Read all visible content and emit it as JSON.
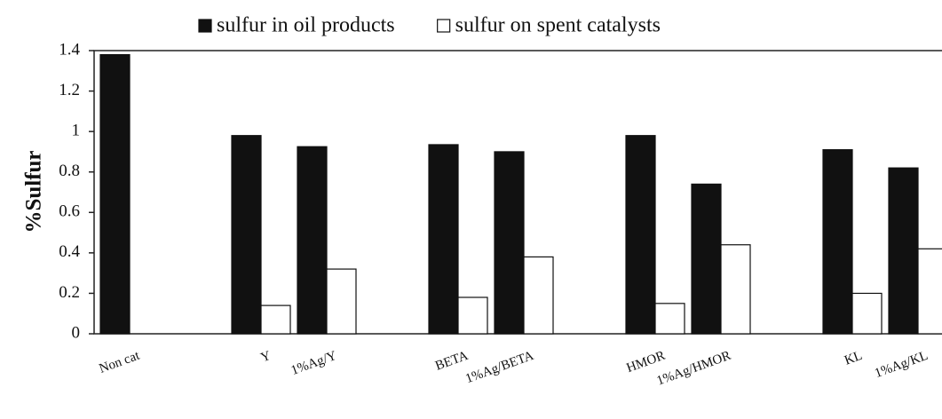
{
  "chart_data": {
    "type": "bar",
    "y_label": "%Sulfur",
    "categories": [
      "Non cat",
      null,
      "Y",
      "1%Ag/Y",
      null,
      "BETA",
      "1%Ag/BETA",
      null,
      "HMOR",
      "1%Ag/HMOR",
      null,
      "KL",
      "1%Ag/KL"
    ],
    "series": [
      {
        "name": "sulfur in oil products",
        "color": "#111111",
        "values": [
          1.38,
          null,
          0.98,
          0.925,
          null,
          0.935,
          0.9,
          null,
          0.98,
          0.74,
          null,
          0.91,
          0.82
        ]
      },
      {
        "name": "sulfur on spent catalysts",
        "color": "#ffffff",
        "values": [
          null,
          null,
          0.14,
          0.32,
          null,
          0.18,
          0.38,
          null,
          0.15,
          0.44,
          null,
          0.2,
          0.42
        ]
      }
    ],
    "ylim": [
      0,
      1.4
    ],
    "yticks": [
      0,
      0.2,
      0.4,
      0.6,
      0.8,
      1,
      1.2,
      1.4
    ],
    "legend": "top"
  }
}
